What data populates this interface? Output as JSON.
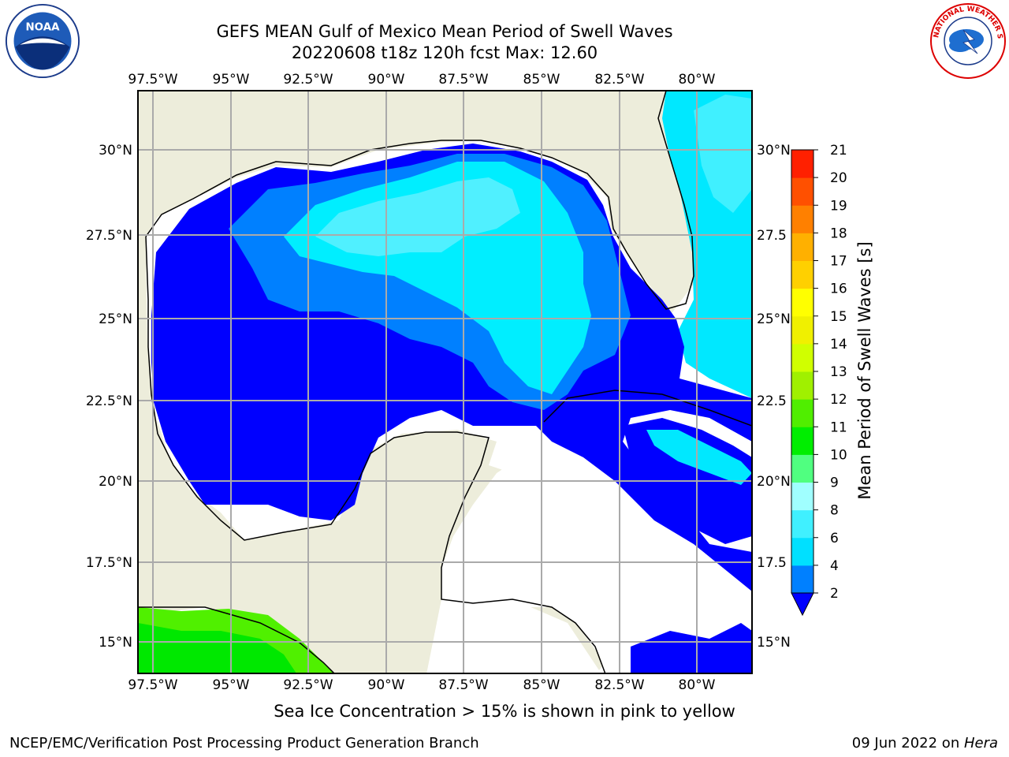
{
  "title": {
    "line1": "GEFS MEAN Gulf of Mexico Mean Period of Swell Waves",
    "line2": "20220608 t18z 120h fcst   Max: 12.60"
  },
  "map": {
    "lon_ticks": [
      "97.5°W",
      "95°W",
      "92.5°W",
      "90°W",
      "87.5°W",
      "85°W",
      "82.5°W",
      "80°W"
    ],
    "lat_ticks_left": [
      "30°N",
      "27.5°N",
      "25°N",
      "22.5°N",
      "20°N",
      "17.5°N",
      "15°N"
    ],
    "lat_ticks_right": [
      "30°N",
      "27.5",
      "25°N",
      "22.5",
      "20°N",
      "17.5",
      "15°N"
    ],
    "extent": {
      "lon_min": -98,
      "lon_max": -78.5,
      "lat_min": 14,
      "lat_max": 31.8
    },
    "colors": {
      "land": "#EDEDDB",
      "ocean_missing": "#FFFFFF",
      "grid": "#AAAAAA",
      "coast": "#000000"
    }
  },
  "colorbar": {
    "label": "Mean Period of Swell Waves [s]",
    "ticks": [
      "2",
      "4",
      "6",
      "8",
      "9",
      "10",
      "11",
      "12",
      "13",
      "14",
      "15",
      "16",
      "17",
      "18",
      "19",
      "20",
      "21"
    ],
    "colors": [
      "#0000FF",
      "#0080FF",
      "#00E0FF",
      "#40F0FF",
      "#A0FFFF",
      "#50FF80",
      "#00EE00",
      "#50EE00",
      "#A0F000",
      "#D0FF00",
      "#F0F000",
      "#FFFF00",
      "#FFD000",
      "#FFB000",
      "#FF8000",
      "#FF5000",
      "#FF2000",
      "#FF0000"
    ]
  },
  "logos": {
    "noaa_text": "NOAA",
    "nws_text": "NATIONAL WEATHER SERVICE"
  },
  "footer": {
    "ice_note": "Sea Ice Concentration > 15% is shown in pink to yellow",
    "credit": "NCEP/EMC/Verification Post Processing Product Generation Branch",
    "date_prefix": "09 Jun 2022 on ",
    "date_host": "Hera"
  }
}
